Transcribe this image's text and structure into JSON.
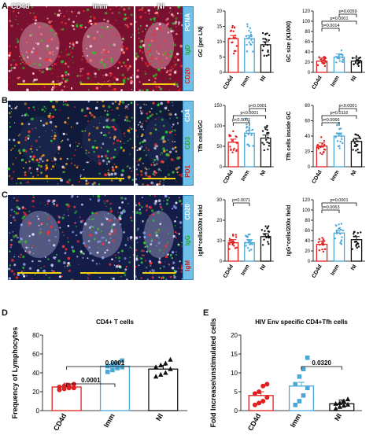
{
  "panel_letters": [
    "A",
    "B",
    "C",
    "D",
    "E"
  ],
  "image_headers": [
    "CD4d",
    "Imm",
    "NI"
  ],
  "stains": {
    "A": [
      {
        "text": "PCNA",
        "color": "#ffffff"
      },
      {
        "text": "IgD",
        "color": "#2e9e2e"
      },
      {
        "text": "CD20",
        "color": "#d62020"
      }
    ],
    "B": [
      {
        "text": "CD4",
        "color": "#ffffff"
      },
      {
        "text": "CD3",
        "color": "#2e9e2e"
      },
      {
        "text": "PD1",
        "color": "#d62020"
      }
    ],
    "C": [
      {
        "text": "CD20",
        "color": "#ffffff"
      },
      {
        "text": "IgG",
        "color": "#2e9e2e"
      },
      {
        "text": "IgM",
        "color": "#d62020"
      }
    ]
  },
  "colors": {
    "cd4d": "#e02020",
    "imm": "#4aa8d8",
    "ni": "#111111"
  },
  "chart_data": [
    {
      "type": "bar",
      "id": "A1",
      "categories": [
        "CD4d",
        "Imm",
        "NI"
      ],
      "values": [
        11,
        11,
        9
      ],
      "ylabel": "GC (per LN)",
      "ylim": [
        0,
        20
      ],
      "yticks": [
        "0",
        "5",
        "10",
        "15",
        "20"
      ],
      "p_values": []
    },
    {
      "type": "bar",
      "id": "A2",
      "categories": [
        "CD4d",
        "Imm",
        "NI"
      ],
      "values": [
        22,
        30,
        22
      ],
      "ylabel": "GC size (X1000)",
      "ylim": [
        0,
        120
      ],
      "yticks": [
        "0",
        "20",
        "40",
        "60",
        "80",
        "100",
        "120"
      ],
      "p_values": [
        "p=0.0014",
        "p=0.0001",
        "p=0.0059"
      ]
    },
    {
      "type": "bar",
      "id": "B1",
      "categories": [
        "CD4d",
        "Imm",
        "NI"
      ],
      "values": [
        60,
        82,
        70
      ],
      "ylabel": "Tfh cells/GC",
      "ylim": [
        0,
        150
      ],
      "yticks": [
        "0",
        "50",
        "100",
        "150"
      ],
      "p_values": [
        "p<0.0001",
        "p<0.0001",
        "p<0.0001"
      ]
    },
    {
      "type": "bar",
      "id": "B2",
      "categories": [
        "CD4d",
        "Imm",
        "NI"
      ],
      "values": [
        27,
        40,
        33
      ],
      "ylabel": "Tfh cells inside GC",
      "ylim": [
        0,
        80
      ],
      "yticks": [
        "0",
        "20",
        "40",
        "60",
        "80"
      ],
      "p_values": [
        "p=0.0066",
        "p=0.0116",
        "p<0.0001"
      ]
    },
    {
      "type": "bar",
      "id": "C1",
      "categories": [
        "CD4d",
        "Imm",
        "NI"
      ],
      "values": [
        9,
        9,
        12
      ],
      "ylabel": "IgM⁺cells/200x field",
      "ylim": [
        0,
        30
      ],
      "yticks": [
        "0",
        "10",
        "20",
        "30"
      ],
      "p_values": [
        "p=0.0071"
      ]
    },
    {
      "type": "bar",
      "id": "C2",
      "categories": [
        "CD4d",
        "Imm",
        "NI"
      ],
      "values": [
        33,
        55,
        42
      ],
      "ylabel": "IgG⁺cells/200x field",
      "ylim": [
        0,
        120
      ],
      "yticks": [
        "0",
        "20",
        "40",
        "60",
        "80",
        "100",
        "120"
      ],
      "p_values": [
        "p=0.0063",
        "p=0.0001"
      ]
    },
    {
      "type": "bar",
      "id": "D",
      "title": "CD4+ T cells",
      "categories": [
        "CD4d",
        "Imm",
        "NI"
      ],
      "values": [
        25,
        47,
        44
      ],
      "ylabel": "Frequency of Lymphocytes",
      "ylim": [
        0,
        80
      ],
      "yticks": [
        "0",
        "20",
        "40",
        "60",
        "80"
      ],
      "points": [
        [
          22,
          23,
          24,
          24,
          25,
          26,
          26,
          28
        ],
        [
          41,
          43,
          45,
          46,
          47,
          48,
          50,
          53
        ],
        [
          36,
          38,
          40,
          44,
          46,
          48,
          50,
          54
        ]
      ],
      "p_values": [
        "0.0001",
        "0.0001"
      ]
    },
    {
      "type": "bar",
      "id": "E",
      "title": "HIV Env specific CD4+Tfh cells",
      "categories": [
        "CD4d",
        "Imm",
        "NI"
      ],
      "values": [
        4,
        6.5,
        1.8
      ],
      "ylabel": "Fold Increase/unstimulated cells",
      "ylim": [
        0,
        20
      ],
      "yticks": [
        "0",
        "5",
        "10",
        "15",
        "20"
      ],
      "points": [
        [
          1.5,
          2.0,
          2.5,
          3.5,
          4.5,
          5,
          6.5,
          7
        ],
        [
          1.5,
          2.5,
          4,
          6,
          7,
          9,
          11,
          14
        ],
        [
          0.5,
          1,
          1.3,
          1.6,
          1.8,
          2,
          2.5,
          3
        ]
      ],
      "p_values": [
        "0.0320"
      ]
    }
  ]
}
